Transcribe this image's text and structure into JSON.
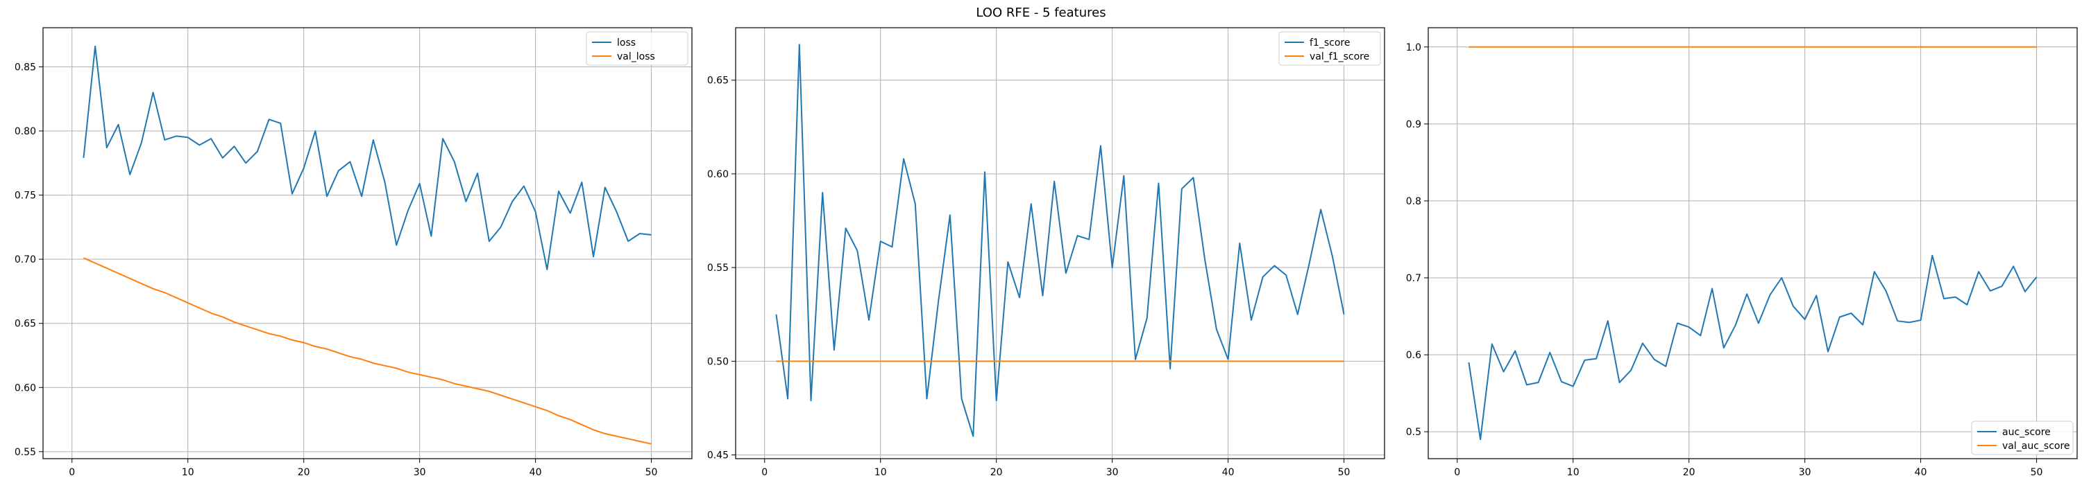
{
  "title": "LOO RFE - 5 features",
  "colors": {
    "series1": "#1f77b4",
    "series2": "#ff7f0e",
    "grid": "#b0b0b0",
    "axis": "#000000"
  },
  "chart_data": [
    {
      "type": "line",
      "title": "",
      "xlabel": "",
      "ylabel": "",
      "xlim": [
        -2.5,
        53.5
      ],
      "ylim": [
        0.5445,
        0.8805
      ],
      "xticks": [
        0,
        10,
        20,
        30,
        40,
        50
      ],
      "yticks": [
        0.55,
        0.6,
        0.65,
        0.7,
        0.75,
        0.8,
        0.85
      ],
      "ytick_labels": [
        "0.55",
        "0.60",
        "0.65",
        "0.70",
        "0.75",
        "0.80",
        "0.85"
      ],
      "grid": true,
      "legend": "top-right",
      "x": [
        1,
        2,
        3,
        4,
        5,
        6,
        7,
        8,
        9,
        10,
        11,
        12,
        13,
        14,
        15,
        16,
        17,
        18,
        19,
        20,
        21,
        22,
        23,
        24,
        25,
        26,
        27,
        28,
        29,
        30,
        31,
        32,
        33,
        34,
        35,
        36,
        37,
        38,
        39,
        40,
        41,
        42,
        43,
        44,
        45,
        46,
        47,
        48,
        49,
        50
      ],
      "series": [
        {
          "name": "loss",
          "color": "#1f77b4",
          "values": [
            0.779,
            0.866,
            0.787,
            0.805,
            0.766,
            0.791,
            0.83,
            0.793,
            0.796,
            0.795,
            0.789,
            0.794,
            0.779,
            0.788,
            0.775,
            0.784,
            0.809,
            0.806,
            0.751,
            0.771,
            0.8,
            0.749,
            0.769,
            0.776,
            0.749,
            0.793,
            0.76,
            0.711,
            0.738,
            0.759,
            0.718,
            0.794,
            0.776,
            0.745,
            0.767,
            0.714,
            0.725,
            0.745,
            0.757,
            0.737,
            0.692,
            0.753,
            0.736,
            0.76,
            0.702,
            0.756,
            0.737,
            0.714,
            0.72,
            0.719
          ]
        },
        {
          "name": "val_loss",
          "color": "#ff7f0e",
          "values": [
            0.701,
            0.697,
            0.693,
            0.689,
            0.685,
            0.681,
            0.677,
            0.674,
            0.67,
            0.666,
            0.662,
            0.658,
            0.655,
            0.651,
            0.648,
            0.645,
            0.642,
            0.64,
            0.637,
            0.635,
            0.632,
            0.63,
            0.627,
            0.624,
            0.622,
            0.619,
            0.617,
            0.615,
            0.612,
            0.61,
            0.608,
            0.606,
            0.603,
            0.601,
            0.599,
            0.597,
            0.594,
            0.591,
            0.588,
            0.585,
            0.582,
            0.578,
            0.575,
            0.571,
            0.567,
            0.564,
            0.562,
            0.56,
            0.558,
            0.556
          ]
        }
      ]
    },
    {
      "type": "line",
      "title": "",
      "xlabel": "",
      "ylabel": "",
      "xlim": [
        -2.5,
        53.5
      ],
      "ylim": [
        0.448,
        0.678
      ],
      "xticks": [
        0,
        10,
        20,
        30,
        40,
        50
      ],
      "yticks": [
        0.45,
        0.5,
        0.55,
        0.6,
        0.65
      ],
      "ytick_labels": [
        "0.45",
        "0.50",
        "0.55",
        "0.60",
        "0.65"
      ],
      "grid": true,
      "legend": "top-right",
      "x": [
        1,
        2,
        3,
        4,
        5,
        6,
        7,
        8,
        9,
        10,
        11,
        12,
        13,
        14,
        15,
        16,
        17,
        18,
        19,
        20,
        21,
        22,
        23,
        24,
        25,
        26,
        27,
        28,
        29,
        30,
        31,
        32,
        33,
        34,
        35,
        36,
        37,
        38,
        39,
        40,
        41,
        42,
        43,
        44,
        45,
        46,
        47,
        48,
        49,
        50
      ],
      "series": [
        {
          "name": "f1_score",
          "color": "#1f77b4",
          "values": [
            0.525,
            0.48,
            0.669,
            0.479,
            0.59,
            0.506,
            0.571,
            0.559,
            0.522,
            0.564,
            0.561,
            0.608,
            0.584,
            0.48,
            0.532,
            0.578,
            0.48,
            0.46,
            0.601,
            0.479,
            0.553,
            0.534,
            0.584,
            0.535,
            0.596,
            0.547,
            0.567,
            0.565,
            0.615,
            0.55,
            0.599,
            0.501,
            0.523,
            0.595,
            0.496,
            0.592,
            0.598,
            0.554,
            0.517,
            0.501,
            0.563,
            0.522,
            0.545,
            0.551,
            0.546,
            0.525,
            0.552,
            0.581,
            0.556,
            0.525
          ]
        },
        {
          "name": "val_f1_score",
          "color": "#ff7f0e",
          "values": [
            0.5,
            0.5,
            0.5,
            0.5,
            0.5,
            0.5,
            0.5,
            0.5,
            0.5,
            0.5,
            0.5,
            0.5,
            0.5,
            0.5,
            0.5,
            0.5,
            0.5,
            0.5,
            0.5,
            0.5,
            0.5,
            0.5,
            0.5,
            0.5,
            0.5,
            0.5,
            0.5,
            0.5,
            0.5,
            0.5,
            0.5,
            0.5,
            0.5,
            0.5,
            0.5,
            0.5,
            0.5,
            0.5,
            0.5,
            0.5,
            0.5,
            0.5,
            0.5,
            0.5,
            0.5,
            0.5,
            0.5,
            0.5,
            0.5,
            0.5
          ]
        }
      ]
    },
    {
      "type": "line",
      "title": "",
      "xlabel": "",
      "ylabel": "",
      "xlim": [
        -2.5,
        53.5
      ],
      "ylim": [
        0.465,
        1.025
      ],
      "xticks": [
        0,
        10,
        20,
        30,
        40,
        50
      ],
      "yticks": [
        0.5,
        0.6,
        0.7,
        0.8,
        0.9,
        1.0
      ],
      "ytick_labels": [
        "0.5",
        "0.6",
        "0.7",
        "0.8",
        "0.9",
        "1.0"
      ],
      "grid": true,
      "legend": "bottom-right",
      "x": [
        1,
        2,
        3,
        4,
        5,
        6,
        7,
        8,
        9,
        10,
        11,
        12,
        13,
        14,
        15,
        16,
        17,
        18,
        19,
        20,
        21,
        22,
        23,
        24,
        25,
        26,
        27,
        28,
        29,
        30,
        31,
        32,
        33,
        34,
        35,
        36,
        37,
        38,
        39,
        40,
        41,
        42,
        43,
        44,
        45,
        46,
        47,
        48,
        49,
        50
      ],
      "series": [
        {
          "name": "auc_score",
          "color": "#1f77b4",
          "values": [
            0.59,
            0.49,
            0.614,
            0.578,
            0.605,
            0.561,
            0.564,
            0.603,
            0.565,
            0.559,
            0.593,
            0.595,
            0.644,
            0.564,
            0.58,
            0.615,
            0.594,
            0.585,
            0.641,
            0.636,
            0.625,
            0.686,
            0.609,
            0.638,
            0.679,
            0.641,
            0.678,
            0.7,
            0.663,
            0.646,
            0.677,
            0.604,
            0.649,
            0.654,
            0.639,
            0.708,
            0.683,
            0.644,
            0.642,
            0.645,
            0.729,
            0.673,
            0.675,
            0.665,
            0.708,
            0.683,
            0.689,
            0.715,
            0.682,
            0.701
          ]
        },
        {
          "name": "val_auc_score",
          "color": "#ff7f0e",
          "values": [
            1.0,
            1.0,
            1.0,
            1.0,
            1.0,
            1.0,
            1.0,
            1.0,
            1.0,
            1.0,
            1.0,
            1.0,
            1.0,
            1.0,
            1.0,
            1.0,
            1.0,
            1.0,
            1.0,
            1.0,
            1.0,
            1.0,
            1.0,
            1.0,
            1.0,
            1.0,
            1.0,
            1.0,
            1.0,
            1.0,
            1.0,
            1.0,
            1.0,
            1.0,
            1.0,
            1.0,
            1.0,
            1.0,
            1.0,
            1.0,
            1.0,
            1.0,
            1.0,
            1.0,
            1.0,
            1.0,
            1.0,
            1.0,
            1.0,
            1.0
          ]
        }
      ]
    }
  ]
}
